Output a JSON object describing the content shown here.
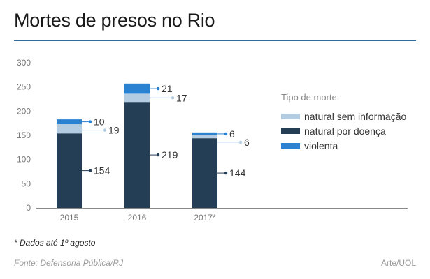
{
  "header": {
    "title": "Mortes de presos no Rio"
  },
  "chart_data": {
    "type": "bar",
    "stacked": true,
    "categories": [
      "2015",
      "2016",
      "2017*"
    ],
    "series": [
      {
        "name": "natural por doença",
        "values": [
          154,
          219,
          144
        ],
        "color": "#243e56"
      },
      {
        "name": "natural sem informação",
        "values": [
          19,
          17,
          6
        ],
        "color": "#b3cce2"
      },
      {
        "name": "violenta",
        "values": [
          10,
          21,
          6
        ],
        "color": "#2b82d0"
      }
    ],
    "ylim": [
      0,
      300
    ],
    "yticks": [
      0,
      50,
      100,
      150,
      200,
      250,
      300
    ],
    "grid": false,
    "legend": {
      "title": "Tipo de morte:",
      "placement": "right",
      "items": [
        {
          "label": "natural sem informação",
          "color": "#b3cce2"
        },
        {
          "label": "natural por doença",
          "color": "#243e56"
        },
        {
          "label": "violenta",
          "color": "#2b82d0"
        }
      ]
    }
  },
  "footer": {
    "footnote": "* Dados até 1º agosto",
    "source": "Fonte: Defensoria Pública/RJ",
    "credit": "Arte/UOL"
  }
}
